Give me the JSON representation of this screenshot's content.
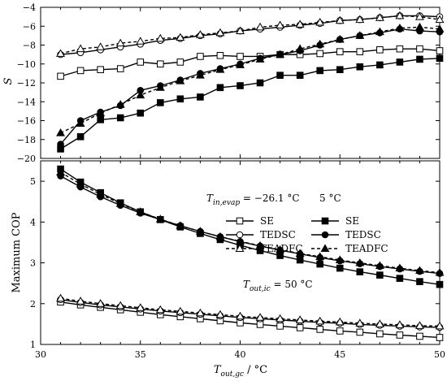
{
  "chart_data": [
    {
      "type": "line",
      "ylabel": "S",
      "x_ticks": [
        30,
        35,
        40,
        45,
        50
      ],
      "y_ticks": [
        -20,
        -18,
        -16,
        -14,
        -12,
        -10,
        -8,
        -6,
        -4
      ],
      "xlim": [
        30,
        50
      ],
      "ylim": [
        -20,
        -4
      ],
      "grid": false,
      "x": [
        31,
        32,
        33,
        34,
        35,
        36,
        37,
        38,
        39,
        40,
        41,
        42,
        43,
        44,
        45,
        46,
        47,
        48,
        49,
        50
      ],
      "series": [
        {
          "marker": "open-square",
          "line": "solid",
          "values": [
            -11.3,
            -10.7,
            -10.6,
            -10.5,
            -9.8,
            -10.0,
            -9.8,
            -9.2,
            -9.1,
            -9.2,
            -9.2,
            -9.0,
            -9.0,
            -8.9,
            -8.7,
            -8.7,
            -8.5,
            -8.4,
            -8.4,
            -8.6
          ]
        },
        {
          "marker": "filled-square",
          "line": "solid",
          "values": [
            -19.0,
            -17.7,
            -15.9,
            -15.7,
            -15.2,
            -14.1,
            -13.7,
            -13.5,
            -12.5,
            -12.3,
            -12.0,
            -11.2,
            -11.2,
            -10.7,
            -10.6,
            -10.3,
            -10.1,
            -9.8,
            -9.5,
            -9.4
          ]
        },
        {
          "marker": "open-circle",
          "line": "solid",
          "values": [
            -9.0,
            -8.8,
            -8.5,
            -8.2,
            -7.9,
            -7.5,
            -7.3,
            -7.0,
            -6.8,
            -6.5,
            -6.3,
            -6.1,
            -5.9,
            -5.7,
            -5.4,
            -5.3,
            -5.1,
            -4.9,
            -4.9,
            -5.0
          ]
        },
        {
          "marker": "filled-circle",
          "line": "solid",
          "values": [
            -18.5,
            -16.0,
            -15.1,
            -14.4,
            -12.8,
            -12.3,
            -11.7,
            -11.0,
            -10.5,
            -10.0,
            -9.4,
            -9.0,
            -8.6,
            -8.0,
            -7.4,
            -7.0,
            -6.7,
            -6.3,
            -6.5,
            -6.6
          ]
        },
        {
          "marker": "open-triangle",
          "line": "dashed",
          "values": [
            -8.9,
            -8.4,
            -8.2,
            -7.8,
            -7.6,
            -7.3,
            -7.2,
            -6.9,
            -6.7,
            -6.5,
            -6.1,
            -5.9,
            -5.8,
            -5.6,
            -5.4,
            -5.3,
            -5.1,
            -4.9,
            -5.0,
            -5.3
          ]
        },
        {
          "marker": "filled-triangle",
          "line": "dashed",
          "values": [
            -17.3,
            -16.3,
            -15.2,
            -14.3,
            -13.3,
            -12.5,
            -11.8,
            -11.2,
            -10.6,
            -10.1,
            -9.5,
            -9.0,
            -8.4,
            -7.9,
            -7.4,
            -7.0,
            -6.6,
            -6.2,
            -6.1,
            -6.3
          ]
        }
      ]
    },
    {
      "type": "line",
      "xlabel_main": "T",
      "xlabel_sub": "out,gc",
      "xlabel_unit": " / °C",
      "ylabel": "Maximum COP",
      "x_ticks": [
        30,
        35,
        40,
        45,
        50
      ],
      "y_ticks": [
        1,
        2,
        3,
        4,
        5
      ],
      "xlim": [
        30,
        50
      ],
      "ylim": [
        1,
        5.5
      ],
      "grid": false,
      "x": [
        31,
        32,
        33,
        34,
        35,
        36,
        37,
        38,
        39,
        40,
        41,
        42,
        43,
        44,
        45,
        46,
        47,
        48,
        49,
        50
      ],
      "series": [
        {
          "marker": "open-square",
          "line": "solid",
          "values": [
            2.04,
            1.97,
            1.91,
            1.85,
            1.79,
            1.73,
            1.68,
            1.63,
            1.58,
            1.53,
            1.49,
            1.45,
            1.41,
            1.37,
            1.33,
            1.3,
            1.26,
            1.23,
            1.2,
            1.17
          ]
        },
        {
          "marker": "filled-square",
          "line": "solid",
          "values": [
            5.3,
            4.98,
            4.72,
            4.47,
            4.25,
            4.06,
            3.88,
            3.72,
            3.57,
            3.43,
            3.3,
            3.18,
            3.07,
            2.97,
            2.87,
            2.78,
            2.7,
            2.62,
            2.54,
            2.47
          ]
        },
        {
          "marker": "open-circle",
          "line": "solid",
          "values": [
            2.1,
            2.03,
            1.97,
            1.92,
            1.87,
            1.82,
            1.78,
            1.74,
            1.7,
            1.66,
            1.63,
            1.6,
            1.57,
            1.54,
            1.52,
            1.49,
            1.47,
            1.45,
            1.43,
            1.42
          ]
        },
        {
          "marker": "filled-circle",
          "line": "solid",
          "values": [
            5.13,
            4.86,
            4.62,
            4.41,
            4.22,
            4.06,
            3.91,
            3.77,
            3.64,
            3.52,
            3.41,
            3.31,
            3.22,
            3.13,
            3.05,
            2.98,
            2.91,
            2.85,
            2.79,
            2.74
          ]
        },
        {
          "marker": "open-triangle",
          "line": "dashed",
          "values": [
            2.13,
            2.06,
            2.0,
            1.95,
            1.9,
            1.85,
            1.81,
            1.77,
            1.73,
            1.69,
            1.66,
            1.63,
            1.6,
            1.57,
            1.55,
            1.52,
            1.5,
            1.48,
            1.46,
            1.45
          ]
        },
        {
          "marker": "filled-triangle",
          "line": "dashed",
          "values": [
            5.22,
            4.93,
            4.68,
            4.45,
            4.25,
            4.07,
            3.91,
            3.77,
            3.64,
            3.53,
            3.42,
            3.32,
            3.23,
            3.15,
            3.07,
            3.0,
            2.93,
            2.87,
            2.81,
            2.76
          ]
        }
      ],
      "legend": {
        "condition_main": "T",
        "condition_sub": "in,evap",
        "condition_value": " = −26.1 °C",
        "column_2_header": "5 °C",
        "rows": [
          {
            "left_label": "SE",
            "right_label": "SE"
          },
          {
            "left_label": "TEDSC",
            "right_label": "TEDSC"
          },
          {
            "left_label": "TEADFC",
            "right_label": "TEADFC"
          }
        ]
      },
      "annotation": {
        "main": "T",
        "sub": "out,ic",
        "value": " = 50 °C"
      }
    }
  ]
}
